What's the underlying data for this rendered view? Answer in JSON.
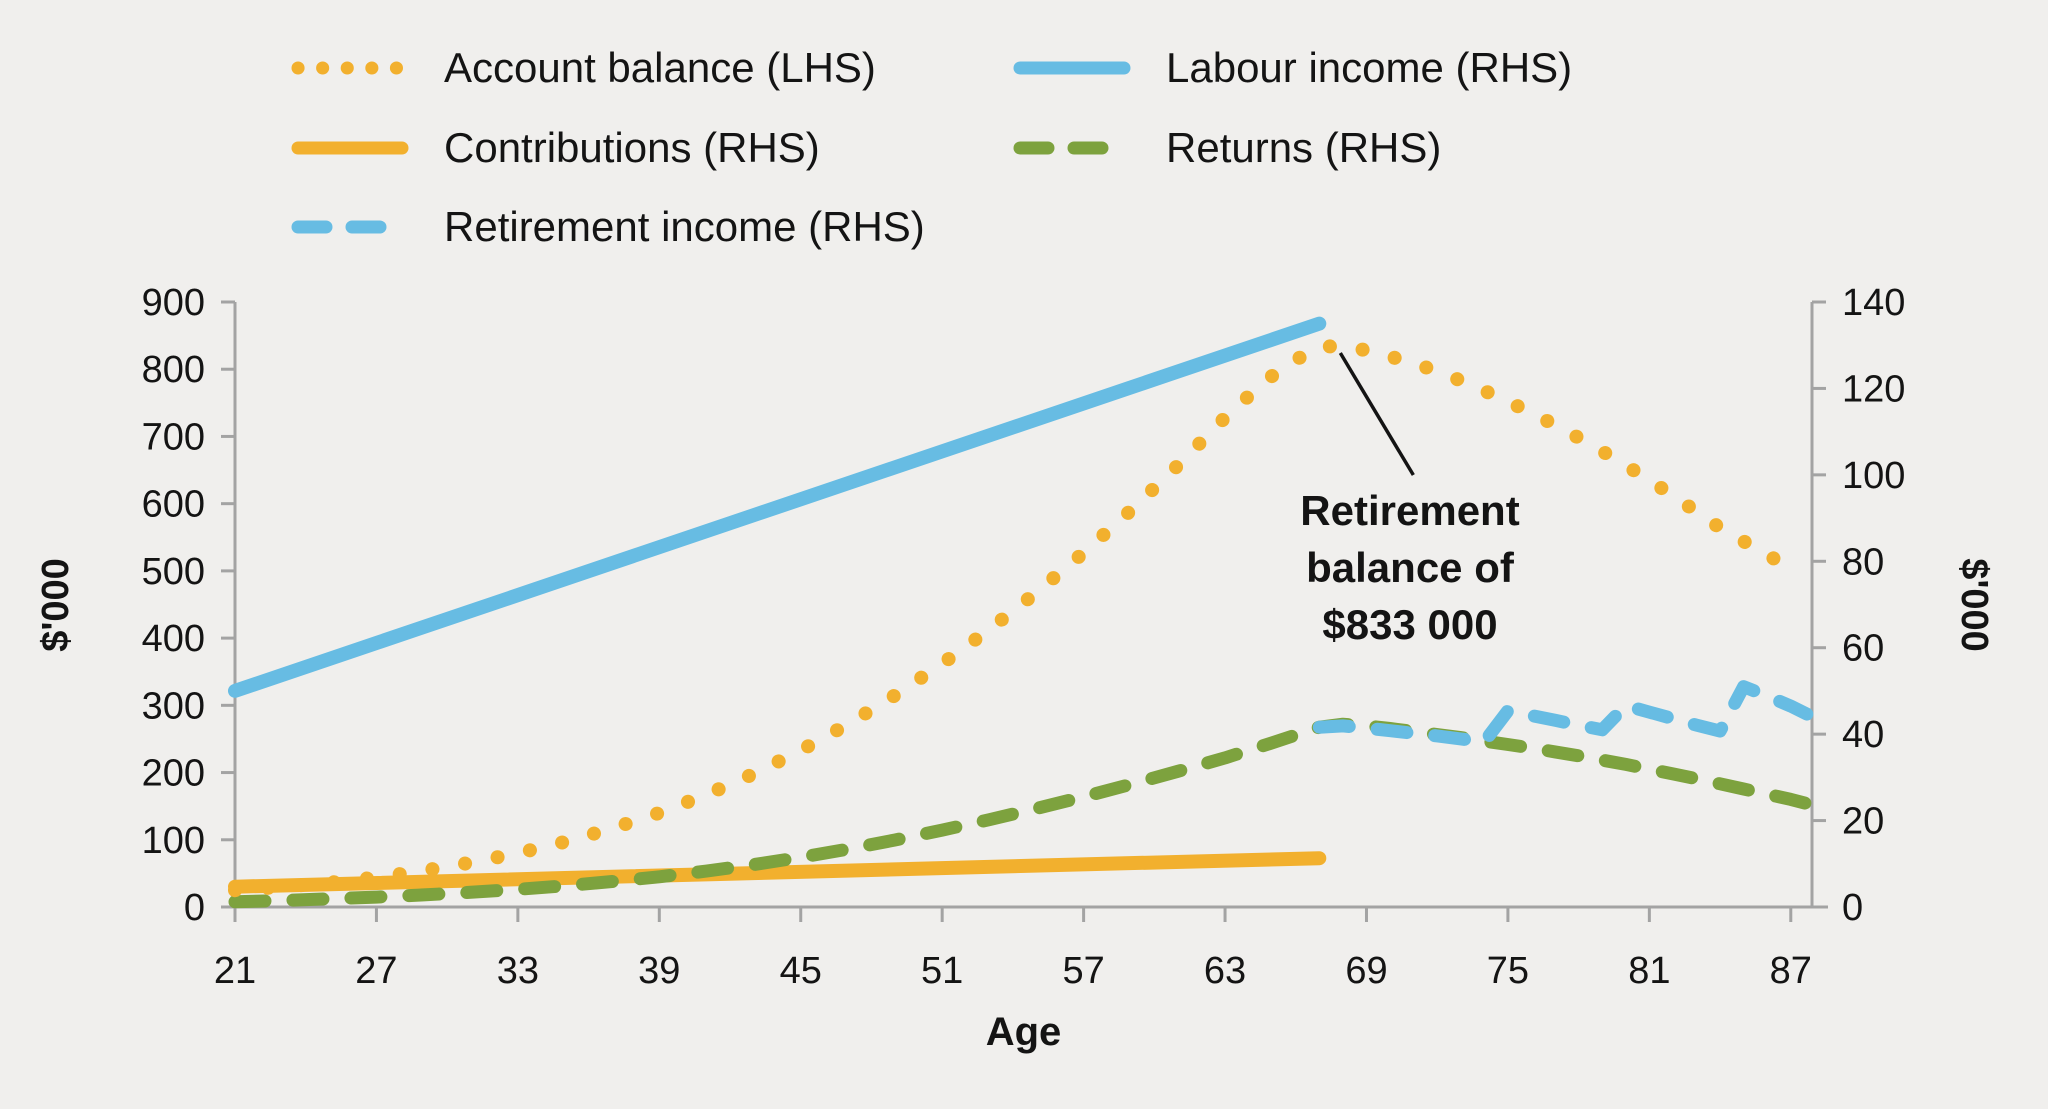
{
  "colors": {
    "amber": "#F2B02E",
    "blue": "#67BCE3",
    "green": "#7DA23E",
    "axis": "#A3A3A3",
    "text": "#141414",
    "background": "#F0EFED"
  },
  "legend": {
    "items": [
      {
        "label": "Account balance (LHS)",
        "color": "amber",
        "style": "dotted"
      },
      {
        "label": "Labour income (RHS)",
        "color": "blue",
        "style": "solid"
      },
      {
        "label": "Contributions (RHS)",
        "color": "amber",
        "style": "solid"
      },
      {
        "label": "Returns (RHS)",
        "color": "green",
        "style": "dashed"
      },
      {
        "label": "Retirement income (RHS)",
        "color": "blue",
        "style": "dashed"
      }
    ]
  },
  "annotation": {
    "lines": [
      "Retirement",
      "balance of",
      "$833 000"
    ]
  },
  "chart_data": {
    "type": "line",
    "x_axis": {
      "label": "Age",
      "min": 21,
      "max": 87.9,
      "ticks": [
        21,
        27,
        33,
        39,
        45,
        51,
        57,
        63,
        69,
        75,
        81,
        87
      ]
    },
    "lhs_axis": {
      "label": "$'000",
      "min": 0,
      "max": 900,
      "ticks": [
        0,
        100,
        200,
        300,
        400,
        500,
        600,
        700,
        800,
        900
      ]
    },
    "rhs_axis": {
      "label": "$'000",
      "min": 0,
      "max": 140,
      "ticks": [
        0,
        20,
        40,
        60,
        80,
        100,
        120,
        140
      ]
    },
    "annotation_note": {
      "text": "Retirement balance of $833 000",
      "target_age": 67,
      "target_value_lhs": 833
    },
    "series": [
      {
        "name": "Contributions (RHS)",
        "axis": "rhs",
        "style": "solid",
        "color": "amber",
        "points": [
          [
            21,
            4.7
          ],
          [
            67,
            11.3
          ]
        ]
      },
      {
        "name": "Returns (RHS)",
        "axis": "rhs",
        "style": "dashed",
        "color": "green",
        "points": [
          [
            21,
            1.2
          ],
          [
            23,
            1.5
          ],
          [
            25,
            1.9
          ],
          [
            27,
            2.3
          ],
          [
            29,
            2.8
          ],
          [
            31,
            3.4
          ],
          [
            33,
            4.1
          ],
          [
            35,
            4.9
          ],
          [
            37,
            5.9
          ],
          [
            39,
            7.0
          ],
          [
            41,
            8.3
          ],
          [
            43,
            9.8
          ],
          [
            45,
            11.5
          ],
          [
            47,
            13.4
          ],
          [
            49,
            15.5
          ],
          [
            51,
            17.8
          ],
          [
            53,
            20.2
          ],
          [
            55,
            22.8
          ],
          [
            57,
            25.5
          ],
          [
            59,
            28.4
          ],
          [
            61,
            31.4
          ],
          [
            63,
            34.5
          ],
          [
            65,
            38.0
          ],
          [
            66,
            39.8
          ],
          [
            67,
            41.6
          ],
          [
            68,
            42.3
          ],
          [
            69,
            41.9
          ],
          [
            70,
            41.3
          ],
          [
            71,
            40.6
          ],
          [
            72,
            39.9
          ],
          [
            73,
            39.2
          ],
          [
            74,
            38.4
          ],
          [
            75,
            37.6
          ],
          [
            76,
            36.8
          ],
          [
            77,
            35.9
          ],
          [
            78,
            35.0
          ],
          [
            79,
            34.0
          ],
          [
            80,
            33.0
          ],
          [
            81,
            31.9
          ],
          [
            82,
            30.8
          ],
          [
            83,
            29.7
          ],
          [
            84,
            28.5
          ],
          [
            85,
            27.3
          ],
          [
            86,
            26.1
          ],
          [
            87,
            24.9
          ],
          [
            87.7,
            23.9
          ]
        ]
      },
      {
        "name": "Labour income (RHS)",
        "axis": "rhs",
        "style": "solid",
        "color": "blue",
        "points": [
          [
            21,
            50
          ],
          [
            67,
            135
          ]
        ]
      },
      {
        "name": "Retirement income (RHS)",
        "axis": "rhs",
        "style": "dashed",
        "color": "blue",
        "points": [
          [
            67,
            41.6
          ],
          [
            68,
            41.9
          ],
          [
            69,
            41.4
          ],
          [
            70,
            40.8
          ],
          [
            71,
            40.2
          ],
          [
            72,
            39.6
          ],
          [
            73,
            38.9
          ],
          [
            74,
            38.2
          ],
          [
            75,
            45.4
          ],
          [
            76,
            44.3
          ],
          [
            77,
            43.2
          ],
          [
            78,
            42.1
          ],
          [
            79,
            41.0
          ],
          [
            80,
            46.6
          ],
          [
            81,
            45.1
          ],
          [
            82,
            43.6
          ],
          [
            83,
            42.1
          ],
          [
            84,
            40.7
          ],
          [
            85,
            51.0
          ],
          [
            86,
            48.8
          ],
          [
            87,
            46.5
          ],
          [
            87.7,
            44.6
          ]
        ]
      },
      {
        "name": "Account balance (LHS)",
        "axis": "lhs",
        "style": "dotted",
        "color": "amber",
        "points": [
          [
            21,
            25
          ],
          [
            23,
            30
          ],
          [
            25,
            36
          ],
          [
            27,
            44
          ],
          [
            29,
            54
          ],
          [
            31,
            66
          ],
          [
            33,
            80
          ],
          [
            35,
            97
          ],
          [
            37,
            117
          ],
          [
            39,
            140
          ],
          [
            41,
            167
          ],
          [
            43,
            198
          ],
          [
            45,
            233
          ],
          [
            47,
            272
          ],
          [
            49,
            315
          ],
          [
            51,
            362
          ],
          [
            53,
            413
          ],
          [
            55,
            468
          ],
          [
            57,
            527
          ],
          [
            59,
            590
          ],
          [
            61,
            657
          ],
          [
            63,
            728
          ],
          [
            64,
            760
          ],
          [
            65,
            790
          ],
          [
            66,
            814
          ],
          [
            67,
            833
          ],
          [
            68,
            835
          ],
          [
            69,
            828
          ],
          [
            70,
            819
          ],
          [
            71,
            809
          ],
          [
            72,
            797
          ],
          [
            73,
            783
          ],
          [
            74,
            768
          ],
          [
            75,
            752
          ],
          [
            76,
            735
          ],
          [
            77,
            717
          ],
          [
            78,
            698
          ],
          [
            79,
            678
          ],
          [
            80,
            657
          ],
          [
            81,
            635
          ],
          [
            82,
            612
          ],
          [
            83,
            588
          ],
          [
            84,
            564
          ],
          [
            85,
            544
          ],
          [
            86,
            524
          ],
          [
            87,
            504
          ]
        ]
      }
    ]
  }
}
